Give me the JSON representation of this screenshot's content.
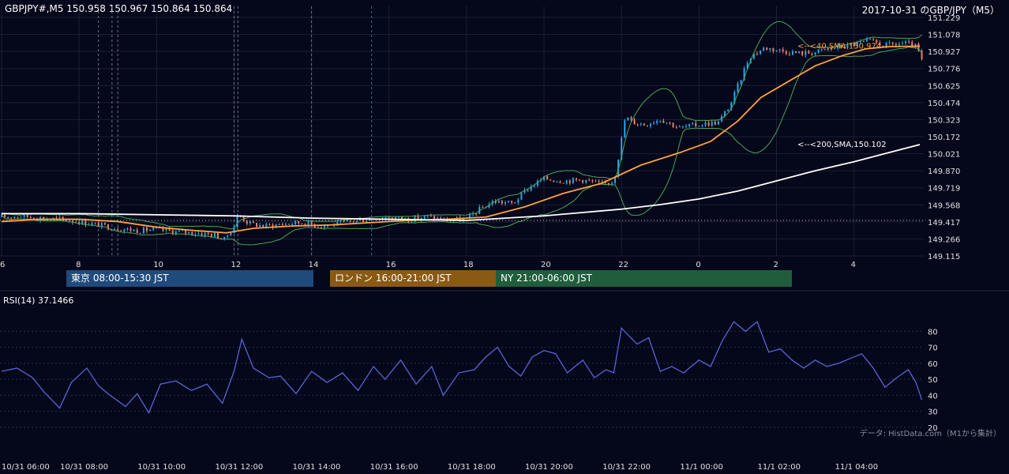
{
  "header": {
    "symbol_info": "GBPJPY#,M5 150.958 150.967 150.864 150.864",
    "date_title": "2017-10-31 のGBP/JPY（M5）"
  },
  "sessions": [
    {
      "label": "東京 08:00-15:30 JST",
      "color": "#1f4a7c"
    },
    {
      "label": "ロンドン 16:00-21:00 JST",
      "color": "#8a5a14"
    },
    {
      "label": "NY 21:00-06:00 JST",
      "color": "#1f5e3c"
    }
  ],
  "colors": {
    "background": "#05071a",
    "bull": "#27a9e8",
    "bear": "#f08068",
    "sma40": "#ffa23a",
    "sma200": "#ffffff",
    "bollinger": "#4aa55a",
    "rsi": "#5a64d8",
    "grid": "#1b2035"
  },
  "chart_data": [
    {
      "type": "line",
      "title": "GBPJPY#,M5 150.958 150.967 150.864 150.864",
      "ylim": [
        149.115,
        151.229
      ],
      "y_ticks": [
        "151.229",
        "151.078",
        "150.927",
        "150.776",
        "150.625",
        "150.474",
        "150.323",
        "150.172",
        "150.021",
        "149.870",
        "149.719",
        "149.568",
        "149.417",
        "149.266",
        "149.115"
      ],
      "x_ticks": [
        "6",
        "8",
        "10",
        "12",
        "14",
        "16",
        "18",
        "20",
        "22",
        "0",
        "2",
        "4"
      ],
      "x_tick_hours": [
        6,
        8,
        10,
        12,
        14,
        16,
        18,
        20,
        22,
        24,
        26,
        28
      ],
      "xlim_hours": [
        6,
        29.8
      ],
      "reference_level": 149.43,
      "annotations": [
        {
          "text": "<--<40,SMA,150.974",
          "y": 150.974,
          "color": "#ffa23a"
        },
        {
          "text": "<--<200,SMA,150.102",
          "y": 150.102,
          "color": "#ffffff"
        }
      ],
      "price_path": [
        [
          6.0,
          149.46
        ],
        [
          6.5,
          149.47
        ],
        [
          7.0,
          149.45
        ],
        [
          7.5,
          149.44
        ],
        [
          8.0,
          149.42
        ],
        [
          8.5,
          149.39
        ],
        [
          9.0,
          149.36
        ],
        [
          9.5,
          149.34
        ],
        [
          10.0,
          149.35
        ],
        [
          10.5,
          149.33
        ],
        [
          11.0,
          149.32
        ],
        [
          11.5,
          149.3
        ],
        [
          11.75,
          149.26
        ],
        [
          12.0,
          149.38
        ],
        [
          12.1,
          149.48
        ],
        [
          12.4,
          149.4
        ],
        [
          12.8,
          149.38
        ],
        [
          13.3,
          149.4
        ],
        [
          13.8,
          149.41
        ],
        [
          14.2,
          149.38
        ],
        [
          14.7,
          149.4
        ],
        [
          15.2,
          149.43
        ],
        [
          15.6,
          149.45
        ],
        [
          16.0,
          149.46
        ],
        [
          16.5,
          149.44
        ],
        [
          17.0,
          149.46
        ],
        [
          17.5,
          149.43
        ],
        [
          18.0,
          149.44
        ],
        [
          18.3,
          149.52
        ],
        [
          18.7,
          149.6
        ],
        [
          19.2,
          149.58
        ],
        [
          19.6,
          149.72
        ],
        [
          20.0,
          149.8
        ],
        [
          20.5,
          149.78
        ],
        [
          21.0,
          149.79
        ],
        [
          21.5,
          149.75
        ],
        [
          21.8,
          149.78
        ],
        [
          21.95,
          150.05
        ],
        [
          22.1,
          150.35
        ],
        [
          22.3,
          150.3
        ],
        [
          22.6,
          150.28
        ],
        [
          23.0,
          150.33
        ],
        [
          23.5,
          150.25
        ],
        [
          24.0,
          150.28
        ],
        [
          24.5,
          150.3
        ],
        [
          24.8,
          150.45
        ],
        [
          25.0,
          150.62
        ],
        [
          25.3,
          150.88
        ],
        [
          25.7,
          150.96
        ],
        [
          26.2,
          150.93
        ],
        [
          26.6,
          150.91
        ],
        [
          27.0,
          150.92
        ],
        [
          27.5,
          150.96
        ],
        [
          28.0,
          150.99
        ],
        [
          28.4,
          151.02
        ],
        [
          28.8,
          150.98
        ],
        [
          29.3,
          151.0
        ],
        [
          29.6,
          150.97
        ],
        [
          29.75,
          150.86
        ]
      ],
      "series": [
        {
          "name": "SMA 40",
          "points": [
            [
              6.0,
              149.42
            ],
            [
              7.0,
              149.44
            ],
            [
              8.0,
              149.44
            ],
            [
              9.0,
              149.42
            ],
            [
              10.0,
              149.37
            ],
            [
              11.0,
              149.34
            ],
            [
              11.8,
              149.32
            ],
            [
              12.5,
              149.36
            ],
            [
              13.5,
              149.38
            ],
            [
              14.5,
              149.39
            ],
            [
              15.5,
              149.41
            ],
            [
              16.5,
              149.43
            ],
            [
              17.5,
              149.44
            ],
            [
              18.5,
              149.46
            ],
            [
              19.5,
              149.55
            ],
            [
              20.5,
              149.67
            ],
            [
              21.5,
              149.76
            ],
            [
              22.5,
              149.92
            ],
            [
              23.5,
              150.03
            ],
            [
              24.3,
              150.13
            ],
            [
              25.0,
              150.31
            ],
            [
              25.6,
              150.52
            ],
            [
              26.3,
              150.66
            ],
            [
              27.0,
              150.8
            ],
            [
              27.7,
              150.89
            ],
            [
              28.3,
              150.95
            ],
            [
              28.9,
              150.97
            ],
            [
              29.7,
              150.974
            ]
          ]
        },
        {
          "name": "SMA 200",
          "points": [
            [
              6.0,
              149.49
            ],
            [
              8.0,
              149.49
            ],
            [
              10.0,
              149.48
            ],
            [
              12.0,
              149.47
            ],
            [
              14.0,
              149.45
            ],
            [
              16.0,
              149.44
            ],
            [
              18.0,
              149.43
            ],
            [
              19.0,
              149.45
            ],
            [
              20.0,
              149.47
            ],
            [
              21.0,
              149.5
            ],
            [
              22.0,
              149.53
            ],
            [
              23.0,
              149.57
            ],
            [
              24.0,
              149.62
            ],
            [
              25.0,
              149.69
            ],
            [
              26.0,
              149.78
            ],
            [
              27.0,
              149.87
            ],
            [
              28.0,
              149.95
            ],
            [
              29.0,
              150.04
            ],
            [
              29.7,
              150.102
            ]
          ]
        }
      ]
    },
    {
      "type": "line",
      "title": "RSI(14) 37.1466",
      "ylim": [
        15,
        95
      ],
      "y_ticks": [
        80,
        70,
        60,
        50,
        40,
        30,
        20
      ],
      "x_ticks": [
        "10/31 06:00",
        "10/31 08:00",
        "10/31 10:00",
        "10/31 12:00",
        "10/31 14:00",
        "10/31 16:00",
        "10/31 18:00",
        "10/31 20:00",
        "10/31 22:00",
        "11/1 00:00",
        "11/1 02:00",
        "11/1 04:00"
      ],
      "series": [
        {
          "name": "RSI(14)",
          "points": [
            [
              6.0,
              55
            ],
            [
              6.4,
              57
            ],
            [
              6.8,
              51
            ],
            [
              7.1,
              42
            ],
            [
              7.5,
              32
            ],
            [
              7.8,
              48
            ],
            [
              8.2,
              57
            ],
            [
              8.5,
              46
            ],
            [
              8.8,
              40
            ],
            [
              9.2,
              33
            ],
            [
              9.5,
              41
            ],
            [
              9.8,
              29
            ],
            [
              10.1,
              47
            ],
            [
              10.5,
              49
            ],
            [
              10.9,
              43
            ],
            [
              11.3,
              47
            ],
            [
              11.7,
              35
            ],
            [
              12.0,
              55
            ],
            [
              12.2,
              75
            ],
            [
              12.5,
              57
            ],
            [
              12.9,
              51
            ],
            [
              13.2,
              52
            ],
            [
              13.6,
              41
            ],
            [
              14.0,
              55
            ],
            [
              14.4,
              48
            ],
            [
              14.8,
              54
            ],
            [
              15.2,
              43
            ],
            [
              15.6,
              58
            ],
            [
              15.9,
              50
            ],
            [
              16.3,
              62
            ],
            [
              16.7,
              47
            ],
            [
              17.1,
              58
            ],
            [
              17.4,
              40
            ],
            [
              17.8,
              54
            ],
            [
              18.2,
              56
            ],
            [
              18.5,
              64
            ],
            [
              18.8,
              70
            ],
            [
              19.1,
              58
            ],
            [
              19.4,
              52
            ],
            [
              19.7,
              64
            ],
            [
              20.0,
              68
            ],
            [
              20.3,
              66
            ],
            [
              20.6,
              54
            ],
            [
              21.0,
              62
            ],
            [
              21.3,
              51
            ],
            [
              21.6,
              56
            ],
            [
              21.8,
              54
            ],
            [
              22.0,
              82
            ],
            [
              22.4,
              72
            ],
            [
              22.7,
              76
            ],
            [
              23.0,
              55
            ],
            [
              23.3,
              58
            ],
            [
              23.6,
              54
            ],
            [
              24.0,
              62
            ],
            [
              24.3,
              58
            ],
            [
              24.6,
              74
            ],
            [
              24.9,
              86
            ],
            [
              25.2,
              80
            ],
            [
              25.5,
              86
            ],
            [
              25.8,
              67
            ],
            [
              26.1,
              69
            ],
            [
              26.4,
              62
            ],
            [
              26.7,
              57
            ],
            [
              27.0,
              62
            ],
            [
              27.3,
              58
            ],
            [
              27.6,
              60
            ],
            [
              27.9,
              63
            ],
            [
              28.2,
              66
            ],
            [
              28.5,
              57
            ],
            [
              28.8,
              45
            ],
            [
              29.1,
              51
            ],
            [
              29.4,
              56
            ],
            [
              29.6,
              48
            ],
            [
              29.75,
              37.1466
            ]
          ]
        }
      ]
    }
  ],
  "credit": "データ: HistData.com（M1から集計）"
}
